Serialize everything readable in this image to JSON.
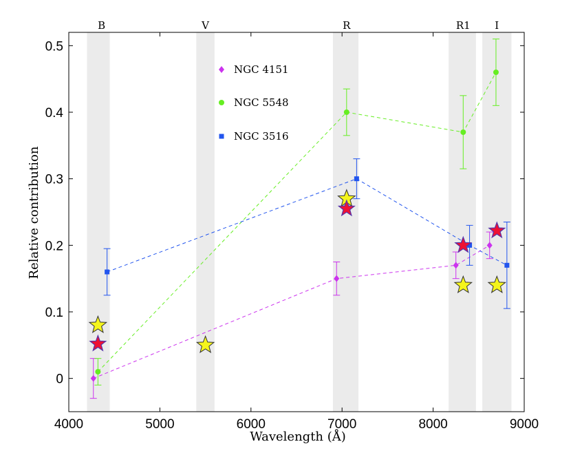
{
  "chart_data": {
    "type": "scatter",
    "title": "",
    "xlabel": "Wavelength (Å)",
    "ylabel": "Relative contribution",
    "xlim": [
      4000,
      9000
    ],
    "ylim": [
      -0.05,
      0.52
    ],
    "xticks": [
      4000,
      5000,
      6000,
      7000,
      8000,
      9000
    ],
    "yticks": [
      0,
      0.1,
      0.2,
      0.3,
      0.4,
      0.5
    ],
    "ytick_labels": [
      "0",
      "0.1",
      "0.2",
      "0.3",
      "0.4",
      "0.5"
    ],
    "bands": [
      {
        "name": "B",
        "xmin": 4200,
        "xmax": 4450,
        "label_x": 4360
      },
      {
        "name": "V",
        "xmin": 5400,
        "xmax": 5600,
        "label_x": 5500
      },
      {
        "name": "R",
        "xmin": 6900,
        "xmax": 7180,
        "label_x": 7050
      },
      {
        "name": "R1",
        "xmin": 8170,
        "xmax": 8470,
        "label_x": 8330
      },
      {
        "name": "I",
        "xmin": 8540,
        "xmax": 8860,
        "label_x": 8700
      }
    ],
    "series": [
      {
        "name": "NGC 4151",
        "color": "#cc33ee",
        "marker": "diamond",
        "points": [
          {
            "x": 4270,
            "y": 0.0,
            "err": 0.03
          },
          {
            "x": 6940,
            "y": 0.15,
            "err": 0.025
          },
          {
            "x": 8250,
            "y": 0.17,
            "err": 0.02
          },
          {
            "x": 8620,
            "y": 0.2,
            "err": 0.02
          }
        ]
      },
      {
        "name": "NGC 5548",
        "color": "#66ee22",
        "marker": "circle",
        "points": [
          {
            "x": 4320,
            "y": 0.01,
            "err": 0.02
          },
          {
            "x": 7050,
            "y": 0.4,
            "err": 0.035
          },
          {
            "x": 8330,
            "y": 0.37,
            "err": 0.055
          },
          {
            "x": 8690,
            "y": 0.46,
            "err": 0.05
          }
        ]
      },
      {
        "name": "NGC 3516",
        "color": "#2255ee",
        "marker": "square",
        "points": [
          {
            "x": 4420,
            "y": 0.16,
            "err": 0.035
          },
          {
            "x": 7160,
            "y": 0.3,
            "err": 0.03
          },
          {
            "x": 8400,
            "y": 0.2,
            "err": 0.03
          },
          {
            "x": 8810,
            "y": 0.17,
            "err": 0.065
          }
        ]
      }
    ],
    "stars_yellow": [
      {
        "x": 4320,
        "y": 0.08
      },
      {
        "x": 5500,
        "y": 0.05
      },
      {
        "x": 7050,
        "y": 0.27
      },
      {
        "x": 8330,
        "y": 0.14
      },
      {
        "x": 8700,
        "y": 0.14
      }
    ],
    "stars_red": [
      {
        "x": 4320,
        "y": 0.052
      },
      {
        "x": 7050,
        "y": 0.255
      },
      {
        "x": 8330,
        "y": 0.2
      },
      {
        "x": 8700,
        "y": 0.222
      }
    ],
    "legend": [
      "NGC 4151",
      "NGC 5548",
      "NGC 3516"
    ]
  }
}
